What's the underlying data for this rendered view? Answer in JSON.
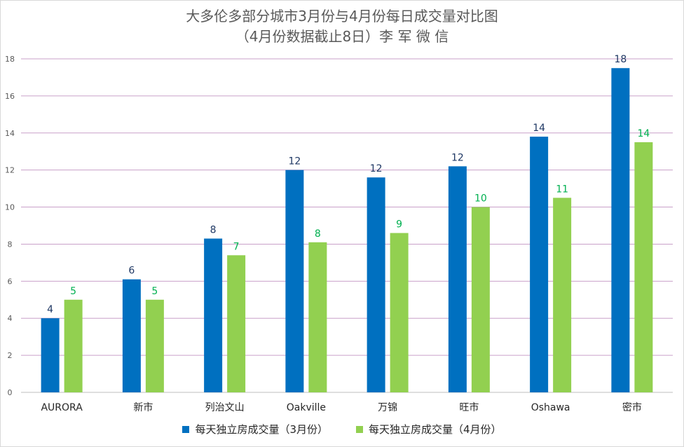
{
  "title_line1": "大多伦多部分城市3月份与4月份每日成交量对比图",
  "title_line2": "（4月份数据截止8日）李 军 微 信",
  "colors": {
    "march": "#0070c0",
    "april": "#92d050",
    "march_label": "#1f3864",
    "april_label": "#00b050",
    "grid": "#c9a0c9"
  },
  "chart_data": {
    "type": "bar",
    "categories": [
      "AURORA",
      "新市",
      "列治文山",
      "Oakville",
      "万锦",
      "旺市",
      "Oshawa",
      "密市"
    ],
    "series": [
      {
        "name": "每天独立房成交量（3月份）",
        "values": [
          4.0,
          6.1,
          8.3,
          12.0,
          11.6,
          12.2,
          13.8,
          17.5
        ],
        "labels": [
          "4",
          "6",
          "8",
          "12",
          "12",
          "12",
          "14",
          "18"
        ]
      },
      {
        "name": "每天独立房成交量（4月份）",
        "values": [
          5.0,
          5.0,
          7.4,
          8.1,
          8.6,
          10.0,
          10.5,
          13.5
        ],
        "labels": [
          "5",
          "5",
          "7",
          "8",
          "9",
          "10",
          "11",
          "14"
        ]
      }
    ],
    "ylim": [
      0,
      18
    ],
    "yticks": [
      0,
      2,
      4,
      6,
      8,
      10,
      12,
      14,
      16,
      18
    ],
    "grid": true,
    "legend": "bottom"
  }
}
